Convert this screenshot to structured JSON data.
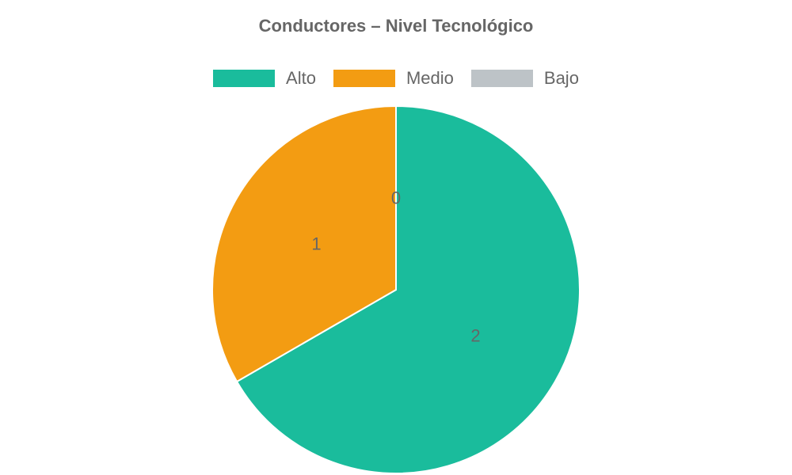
{
  "chart_data": {
    "type": "pie",
    "title": "Conductores – Nivel Tecnológico",
    "categories": [
      "Alto",
      "Medio",
      "Bajo"
    ],
    "values": [
      2,
      1,
      0
    ],
    "colors": [
      "#1ABC9C",
      "#F39C12",
      "#BDC3C7"
    ],
    "legend_position": "top",
    "data_labels": [
      "2",
      "1",
      "0"
    ]
  }
}
